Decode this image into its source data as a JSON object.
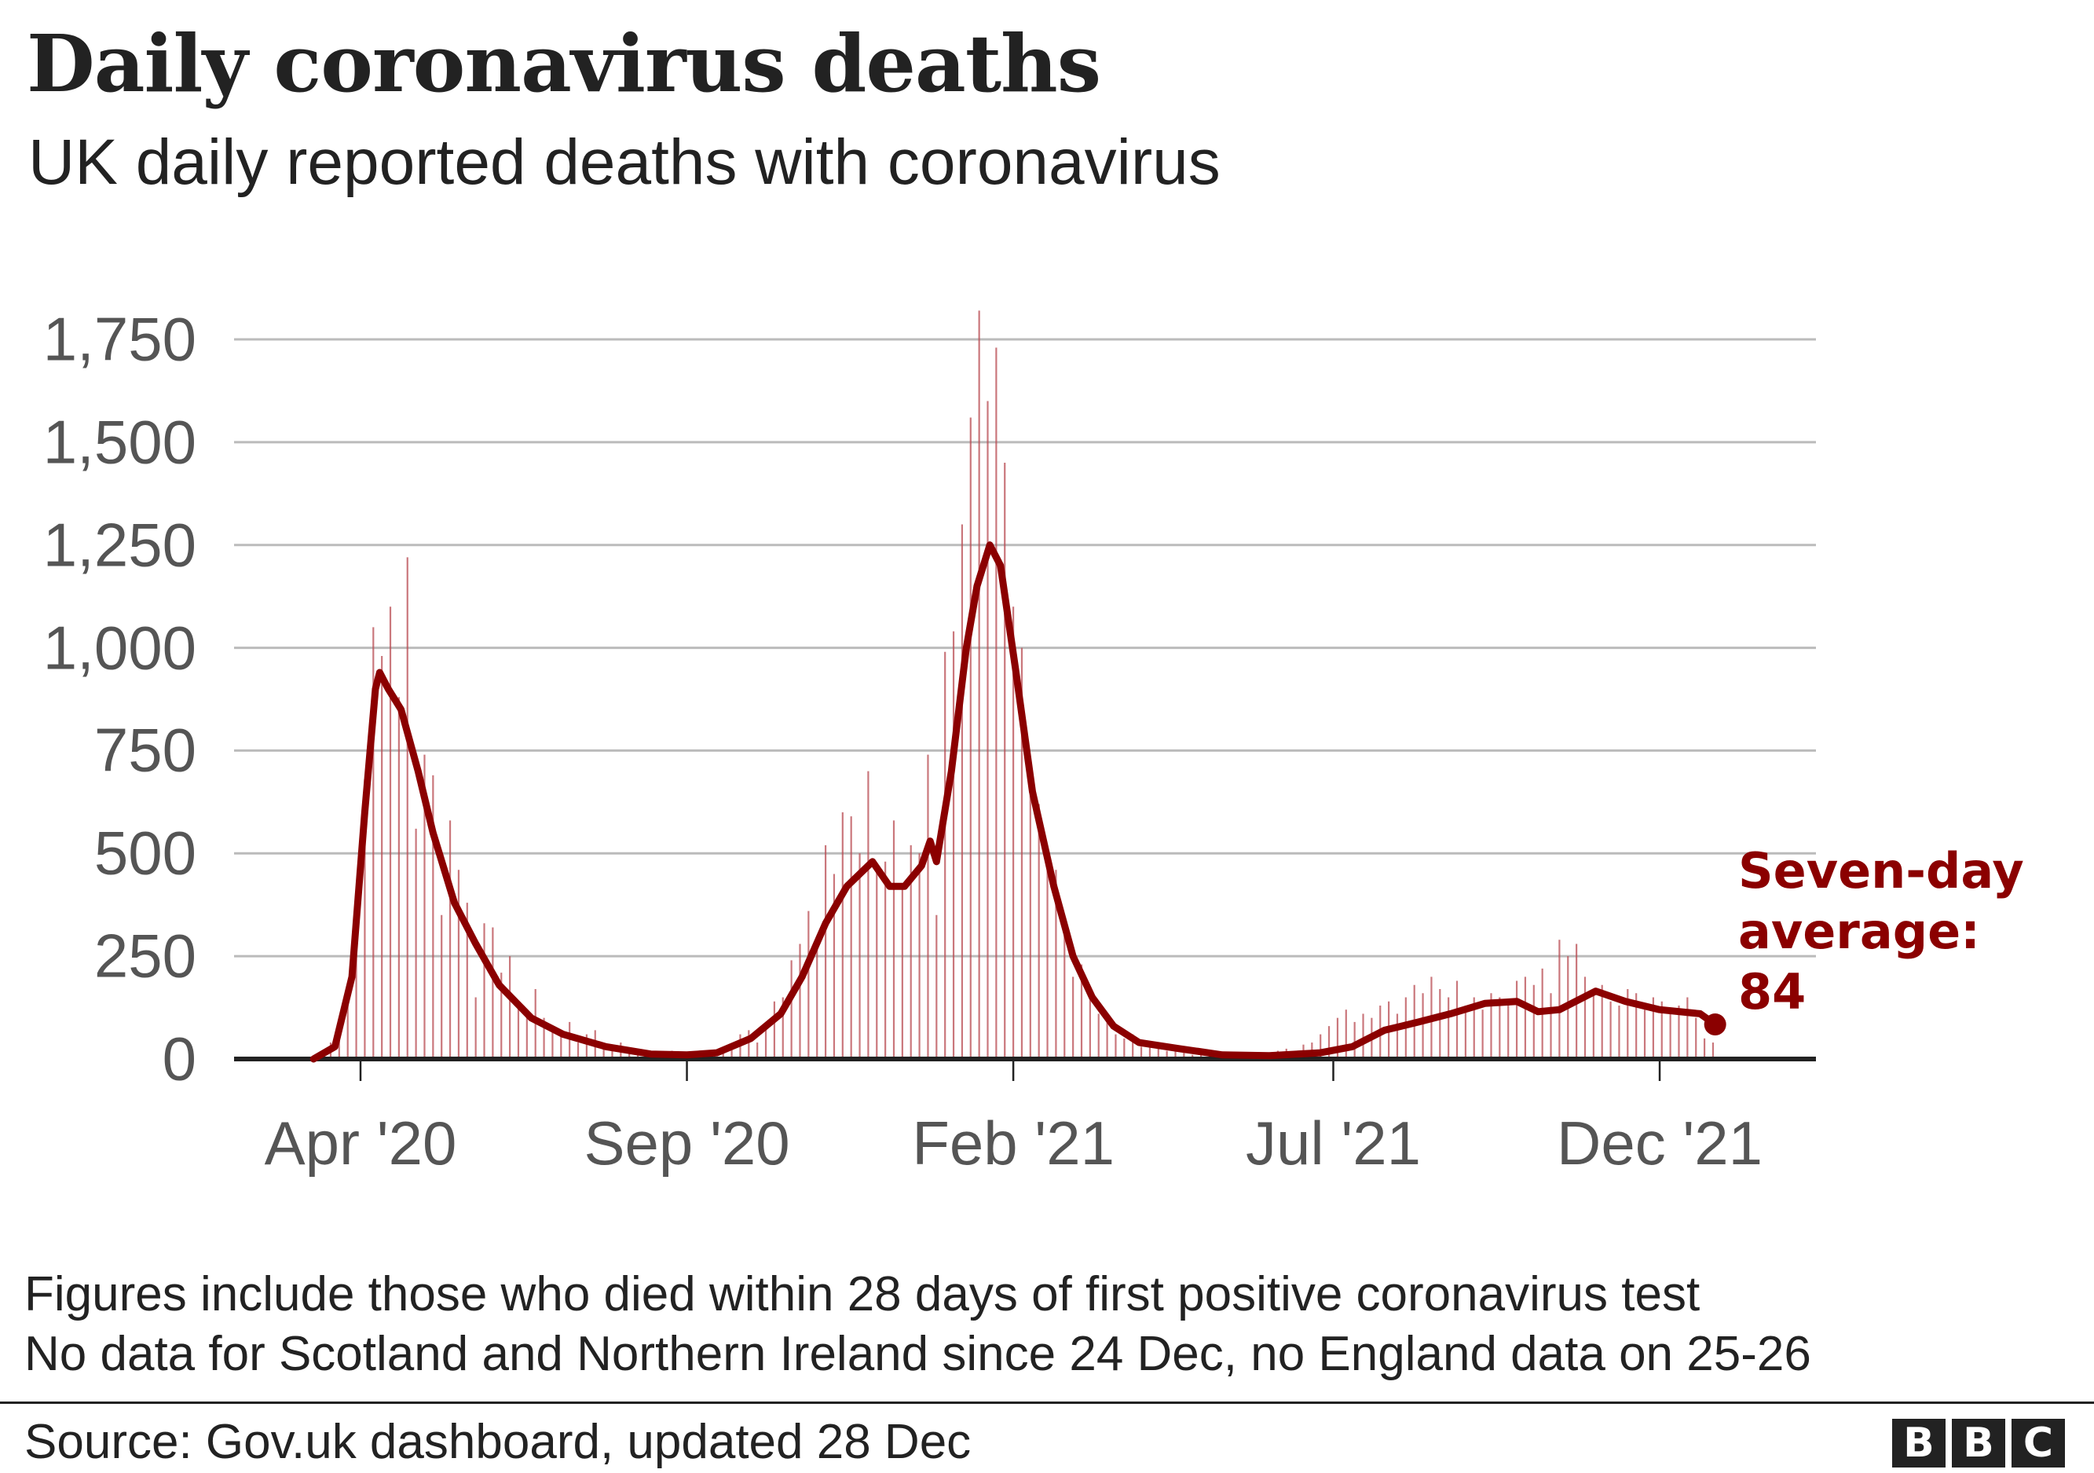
{
  "header": {
    "title": "Daily coronavirus deaths",
    "subtitle": "UK daily reported deaths with coronavirus"
  },
  "chart_data": {
    "type": "bar",
    "title": "Daily coronavirus deaths",
    "subtitle": "UK daily reported deaths with coronavirus",
    "xlabel": "",
    "ylabel": "",
    "ylim": [
      0,
      1750
    ],
    "grid": true,
    "y_ticks": [
      {
        "value": 0,
        "label": "0"
      },
      {
        "value": 250,
        "label": "250"
      },
      {
        "value": 500,
        "label": "500"
      },
      {
        "value": 750,
        "label": "750"
      },
      {
        "value": 1000,
        "label": "1,000"
      },
      {
        "value": 1250,
        "label": "1,250"
      },
      {
        "value": 1500,
        "label": "1,500"
      },
      {
        "value": 1750,
        "label": "1,750"
      }
    ],
    "x_ticks": [
      {
        "date": "2020-04-01",
        "label": "Apr '20"
      },
      {
        "date": "2020-09-01",
        "label": "Sep '20"
      },
      {
        "date": "2021-02-01",
        "label": "Feb '21"
      },
      {
        "date": "2021-07-01",
        "label": "Jul '21"
      },
      {
        "date": "2021-12-01",
        "label": "Dec '21"
      }
    ],
    "daily": {
      "start_date": "2020-03-10",
      "step_days": 4,
      "values": [
        1,
        20,
        40,
        90,
        180,
        380,
        680,
        1050,
        980,
        1100,
        880,
        1220,
        560,
        740,
        690,
        350,
        580,
        460,
        380,
        150,
        330,
        320,
        210,
        250,
        140,
        120,
        170,
        100,
        80,
        60,
        90,
        40,
        60,
        70,
        30,
        30,
        40,
        20,
        10,
        15,
        10,
        15,
        20,
        5,
        10,
        8,
        12,
        18,
        20,
        35,
        60,
        70,
        40,
        80,
        140,
        150,
        240,
        280,
        360,
        280,
        520,
        450,
        600,
        590,
        500,
        700,
        470,
        480,
        580,
        420,
        520,
        500,
        740,
        350,
        990,
        1040,
        1300,
        1560,
        1820,
        1600,
        1730,
        1450,
        1100,
        1000,
        720,
        620,
        490,
        460,
        340,
        200,
        230,
        170,
        110,
        100,
        60,
        50,
        60,
        30,
        40,
        30,
        20,
        30,
        15,
        10,
        12,
        20,
        8,
        15,
        5,
        10,
        10,
        15,
        10,
        20,
        25,
        20,
        35,
        40,
        60,
        80,
        100,
        120,
        90,
        110,
        100,
        130,
        140,
        110,
        150,
        180,
        160,
        200,
        170,
        150,
        190,
        130,
        150,
        120,
        160,
        150,
        140,
        190,
        200,
        180,
        220,
        160,
        290,
        250,
        280,
        200,
        160,
        180,
        140,
        130,
        170,
        160,
        120,
        150,
        140,
        110,
        130,
        150,
        100,
        50,
        40
      ]
    },
    "seven_day_average": [
      [
        "2020-03-10",
        0
      ],
      [
        "2020-03-20",
        30
      ],
      [
        "2020-03-28",
        200
      ],
      [
        "2020-04-03",
        600
      ],
      [
        "2020-04-08",
        900
      ],
      [
        "2020-04-10",
        940
      ],
      [
        "2020-04-14",
        900
      ],
      [
        "2020-04-20",
        850
      ],
      [
        "2020-04-28",
        700
      ],
      [
        "2020-05-05",
        550
      ],
      [
        "2020-05-15",
        380
      ],
      [
        "2020-05-25",
        280
      ],
      [
        "2020-06-05",
        180
      ],
      [
        "2020-06-20",
        100
      ],
      [
        "2020-07-05",
        60
      ],
      [
        "2020-07-25",
        30
      ],
      [
        "2020-08-15",
        12
      ],
      [
        "2020-09-01",
        10
      ],
      [
        "2020-09-15",
        15
      ],
      [
        "2020-10-01",
        50
      ],
      [
        "2020-10-15",
        110
      ],
      [
        "2020-10-25",
        200
      ],
      [
        "2020-11-05",
        330
      ],
      [
        "2020-11-15",
        420
      ],
      [
        "2020-11-27",
        480
      ],
      [
        "2020-12-05",
        420
      ],
      [
        "2020-12-12",
        420
      ],
      [
        "2020-12-20",
        470
      ],
      [
        "2020-12-24",
        530
      ],
      [
        "2020-12-27",
        480
      ],
      [
        "2021-01-03",
        700
      ],
      [
        "2021-01-10",
        1000
      ],
      [
        "2021-01-15",
        1150
      ],
      [
        "2021-01-21",
        1250
      ],
      [
        "2021-01-26",
        1200
      ],
      [
        "2021-02-02",
        950
      ],
      [
        "2021-02-10",
        650
      ],
      [
        "2021-02-20",
        420
      ],
      [
        "2021-03-01",
        250
      ],
      [
        "2021-03-10",
        150
      ],
      [
        "2021-03-20",
        80
      ],
      [
        "2021-04-01",
        40
      ],
      [
        "2021-04-20",
        25
      ],
      [
        "2021-05-10",
        10
      ],
      [
        "2021-06-01",
        8
      ],
      [
        "2021-06-25",
        15
      ],
      [
        "2021-07-10",
        30
      ],
      [
        "2021-07-25",
        70
      ],
      [
        "2021-08-10",
        90
      ],
      [
        "2021-08-25",
        110
      ],
      [
        "2021-09-10",
        135
      ],
      [
        "2021-09-25",
        140
      ],
      [
        "2021-10-05",
        115
      ],
      [
        "2021-10-15",
        120
      ],
      [
        "2021-11-01",
        165
      ],
      [
        "2021-11-15",
        140
      ],
      [
        "2021-12-01",
        120
      ],
      [
        "2021-12-20",
        110
      ],
      [
        "2021-12-27",
        84
      ]
    ],
    "annotation": {
      "line1": "Seven-day",
      "line2": "average:",
      "value": "84"
    },
    "colors": {
      "average": "#8b0000",
      "daily": "#b84a50",
      "grid": "#bbbbbb",
      "axis": "#222222"
    }
  },
  "footer": {
    "note1": "Figures include those who died within 28 days of first positive coronavirus test",
    "note2": "No data for Scotland and Northern Ireland since 24 Dec, no England data on 25-26",
    "source": "Source: Gov.uk dashboard, updated 28 Dec",
    "logo": "BBC"
  }
}
